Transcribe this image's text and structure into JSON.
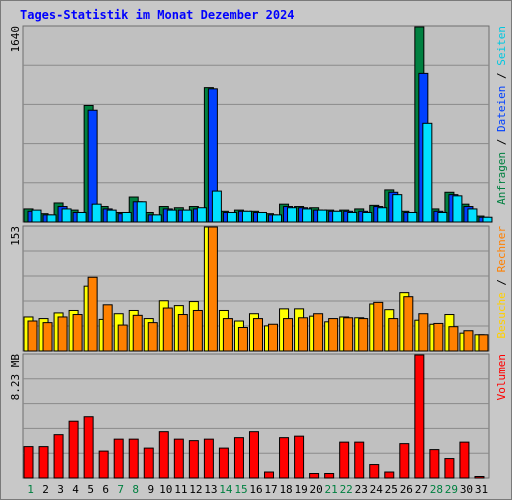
{
  "title": "Tages-Statistik im Monat Dezember 2024",
  "colors": {
    "anfragen": "#008040",
    "dateien": "#0040ff",
    "seiten": "#00e0ff",
    "besuche": "#ffff00",
    "rechner": "#ff8000",
    "volumen": "#ff0000",
    "weekday_label": "#000000",
    "weekend_label": "#008040",
    "title": "#0000ff"
  },
  "chart_data": [
    {
      "type": "bar",
      "name": "panel-hits",
      "y_max_label": "1640",
      "ylim": [
        0,
        1640
      ],
      "categories": [
        "1",
        "2",
        "3",
        "4",
        "5",
        "6",
        "7",
        "8",
        "9",
        "10",
        "11",
        "12",
        "13",
        "14",
        "15",
        "16",
        "17",
        "18",
        "19",
        "20",
        "21",
        "22",
        "23",
        "24",
        "25",
        "26",
        "27",
        "28",
        "29",
        "30",
        "31"
      ],
      "weekend_days": [
        1,
        7,
        8,
        14,
        15,
        21,
        22,
        28,
        29
      ],
      "right_label_parts": [
        {
          "text": "Anfragen",
          "color": "#008040"
        },
        {
          "text": " / ",
          "color": "#000000"
        },
        {
          "text": "Dateien",
          "color": "#0040ff"
        },
        {
          "text": " / ",
          "color": "#000000"
        },
        {
          "text": "Seiten",
          "color": "#00c8e0"
        }
      ],
      "series": [
        {
          "name": "Anfragen",
          "color": "#008040",
          "values": [
            110,
            70,
            160,
            100,
            980,
            130,
            80,
            210,
            80,
            130,
            120,
            130,
            1130,
            90,
            100,
            90,
            70,
            150,
            130,
            120,
            100,
            100,
            110,
            140,
            270,
            90,
            1640,
            110,
            250,
            150,
            50
          ]
        },
        {
          "name": "Dateien",
          "color": "#0040ff",
          "values": [
            90,
            60,
            130,
            80,
            940,
            110,
            70,
            170,
            60,
            110,
            100,
            110,
            1120,
            80,
            90,
            80,
            60,
            130,
            120,
            100,
            90,
            90,
            90,
            130,
            250,
            80,
            1250,
            90,
            230,
            130,
            40
          ]
        },
        {
          "name": "Seiten",
          "color": "#00e0ff",
          "values": [
            100,
            60,
            110,
            80,
            150,
            100,
            80,
            170,
            60,
            100,
            100,
            120,
            260,
            80,
            90,
            80,
            60,
            120,
            110,
            100,
            90,
            80,
            80,
            120,
            230,
            80,
            830,
            80,
            220,
            110,
            40
          ]
        }
      ]
    },
    {
      "type": "bar",
      "name": "panel-visits",
      "y_max_label": "153",
      "ylim": [
        0,
        153
      ],
      "right_label_parts": [
        {
          "text": "Besuche",
          "color": "#ffd000"
        },
        {
          "text": " / ",
          "color": "#000000"
        },
        {
          "text": "Rechner",
          "color": "#ff8000"
        }
      ],
      "series": [
        {
          "name": "Besuche",
          "color": "#ffff00",
          "values": [
            42,
            40,
            47,
            50,
            80,
            39,
            46,
            50,
            40,
            62,
            56,
            61,
            153,
            50,
            37,
            46,
            31,
            52,
            52,
            43,
            36,
            42,
            41,
            58,
            51,
            72,
            38,
            33,
            45,
            22,
            20
          ]
        },
        {
          "name": "Rechner",
          "color": "#ff8000",
          "values": [
            37,
            35,
            42,
            45,
            91,
            57,
            32,
            44,
            35,
            53,
            45,
            50,
            153,
            40,
            29,
            40,
            33,
            40,
            41,
            46,
            40,
            41,
            40,
            60,
            40,
            67,
            46,
            34,
            30,
            25,
            20
          ]
        }
      ]
    },
    {
      "type": "bar",
      "name": "panel-volume",
      "y_max_label": "8.23 MB",
      "ylim": [
        0,
        8.23
      ],
      "right_label_parts": [
        {
          "text": "Volumen",
          "color": "#ff0000"
        }
      ],
      "series": [
        {
          "name": "Volumen",
          "color": "#ff0000",
          "values": [
            2.1,
            2.1,
            2.9,
            3.8,
            4.1,
            1.8,
            2.6,
            2.6,
            2.0,
            3.1,
            2.6,
            2.5,
            2.6,
            2.0,
            2.7,
            3.1,
            0.4,
            2.7,
            2.8,
            0.3,
            0.3,
            2.4,
            2.4,
            0.9,
            0.4,
            2.3,
            8.23,
            1.9,
            1.3,
            2.4,
            0.1
          ]
        }
      ]
    }
  ]
}
